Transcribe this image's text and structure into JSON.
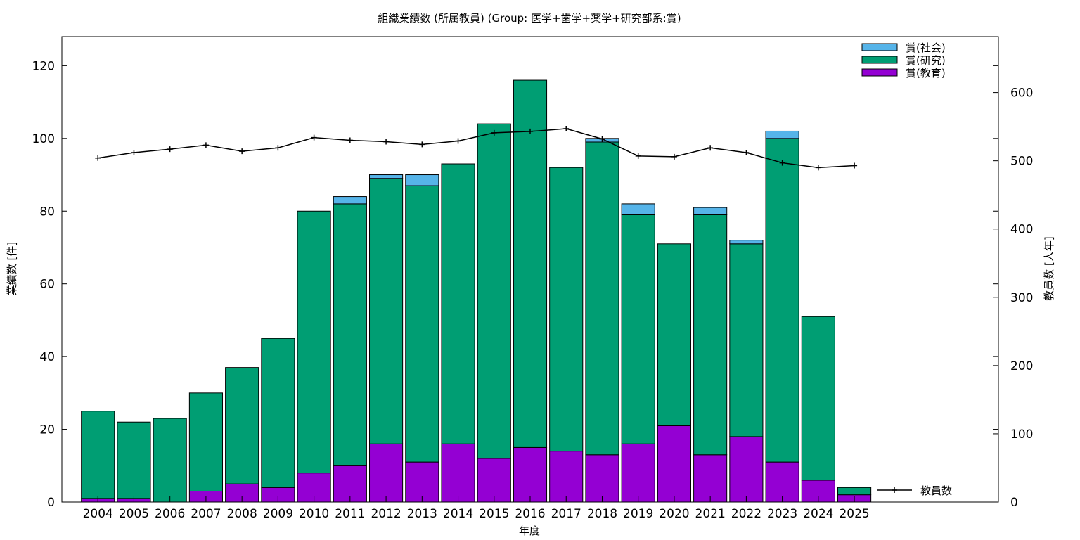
{
  "chart_data": {
    "type": "bar",
    "title": "組織業績数 (所属教員) (Group: 医学+歯学+薬学+研究部系:賞)",
    "xlabel": "年度",
    "ylabel": "業績数 [件]",
    "y2label": "教員数 [人年]",
    "ylim": [
      0,
      128
    ],
    "y2lim": [
      0,
      682
    ],
    "yticks": [
      "0",
      "20",
      "40",
      "60",
      "80",
      "100",
      "120"
    ],
    "y2ticks": [
      "0",
      "100",
      "200",
      "300",
      "400",
      "500",
      "600"
    ],
    "stacked": true,
    "categories": [
      "2004",
      "2005",
      "2006",
      "2007",
      "2008",
      "2009",
      "2010",
      "2011",
      "2012",
      "2013",
      "2014",
      "2015",
      "2016",
      "2017",
      "2018",
      "2019",
      "2020",
      "2021",
      "2022",
      "2023",
      "2024",
      "2025"
    ],
    "series": [
      {
        "name": "賞(教育)",
        "color": "#9400d3",
        "values": [
          1,
          1,
          0,
          3,
          5,
          4,
          8,
          10,
          16,
          11,
          16,
          12,
          15,
          14,
          13,
          16,
          21,
          13,
          18,
          11,
          6,
          2
        ]
      },
      {
        "name": "賞(研究)",
        "color": "#009e73",
        "values": [
          24,
          21,
          23,
          27,
          32,
          41,
          72,
          72,
          73,
          76,
          77,
          92,
          101,
          78,
          86,
          63,
          50,
          66,
          53,
          89,
          45,
          2
        ]
      },
      {
        "name": "賞(社会)",
        "color": "#56b4e9",
        "values": [
          0,
          0,
          0,
          0,
          0,
          0,
          0,
          2,
          1,
          3,
          0,
          0,
          0,
          0,
          1,
          3,
          0,
          2,
          1,
          2,
          0,
          0
        ]
      }
    ],
    "line_series": {
      "name": "教員数",
      "color": "#000000",
      "axis": "y2",
      "values": [
        504,
        512,
        517,
        523,
        514,
        519,
        534,
        530,
        528,
        524,
        529,
        541,
        543,
        547,
        532,
        507,
        506,
        519,
        512,
        497,
        490,
        493
      ]
    },
    "legend_position": "top-right"
  }
}
